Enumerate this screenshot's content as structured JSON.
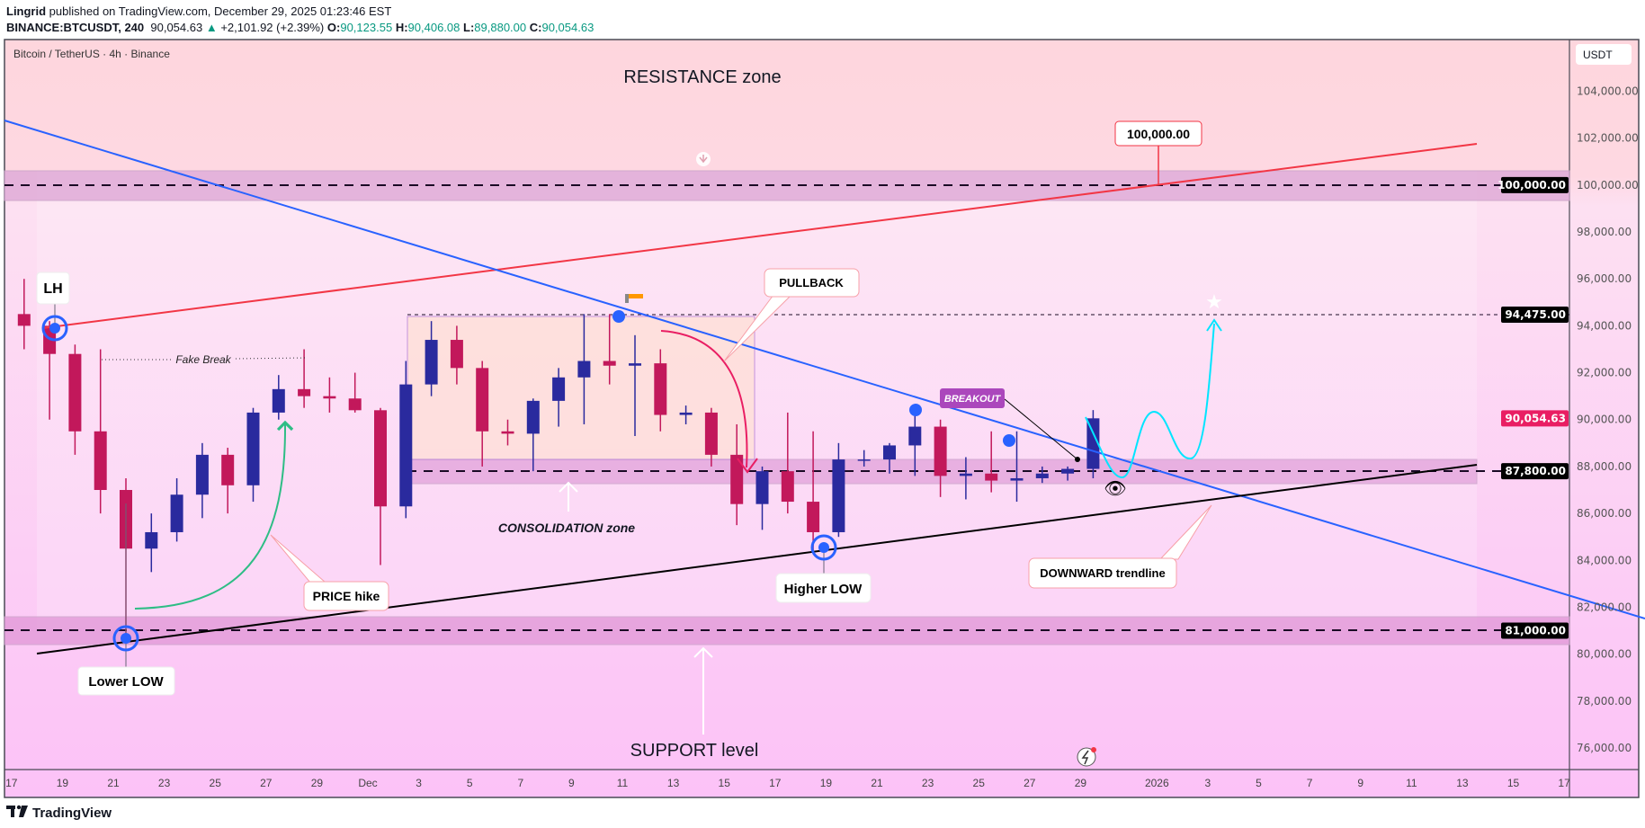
{
  "header": {
    "author": "Lingrid",
    "published": "published on TradingView.com, December 29, 2025 01:23:46 EST",
    "symbol": "BINANCE:BTCUSDT, 240",
    "last": "90,054.63",
    "change": "+2,101.92 (+2.39%)",
    "o_label": "O:",
    "o": "90,123.55",
    "h_label": "H:",
    "h": "90,406.08",
    "l_label": "L:",
    "l": "89,880.00",
    "c_label": "C:",
    "c": "90,054.63"
  },
  "chart_title": "Bitcoin / TetherUS · 4h · Binance",
  "currency": "USDT",
  "footer_logo": "TradingView",
  "colors": {
    "up": "#2a2a9e",
    "down": "#c2185b",
    "last_price": "#e91e63",
    "support_zone": "#e3a6dc",
    "trendline_down": "#2962ff",
    "trendline_red": "#f23645",
    "cyan_projection": "#00e5ff"
  },
  "annotations": {
    "resistance": "RESISTANCE zone",
    "support": "SUPPORT level",
    "consolidation": "CONSOLIDATION zone",
    "fake_break": "Fake Break",
    "lh": "LH",
    "lower_low": "Lower LOW",
    "price_hike": "PRICE hike",
    "pullback": "PULLBACK",
    "higher_low": "Higher LOW",
    "downward": "DOWNWARD trendline",
    "breakout": "BREAKOUT",
    "target": "100,000.00"
  },
  "price_tags": [
    {
      "label": "100,000.00",
      "value": 100000,
      "color": "#000000"
    },
    {
      "label": "94,475.00",
      "value": 94475,
      "color": "#000000"
    },
    {
      "label": "90,054.63",
      "value": 90054.63,
      "color": "#e91e63"
    },
    {
      "label": "87,800.00",
      "value": 87800,
      "color": "#000000"
    },
    {
      "label": "81,000.00",
      "value": 81000,
      "color": "#000000"
    }
  ],
  "chart_data": {
    "type": "candlestick",
    "title": "Bitcoin / TetherUS · 4h · Binance",
    "ylim": [
      75000,
      105500
    ],
    "y_ticks": [
      "104,000.00",
      "102,000.00",
      "100,000.00",
      "98,000.00",
      "96,000.00",
      "94,000.00",
      "92,000.00",
      "90,000.00",
      "88,000.00",
      "86,000.00",
      "84,000.00",
      "82,000.00",
      "80,000.00",
      "78,000.00",
      "76,000.00"
    ],
    "y_tick_values": [
      104000,
      102000,
      100000,
      98000,
      96000,
      94000,
      92000,
      90000,
      88000,
      86000,
      84000,
      82000,
      80000,
      78000,
      76000
    ],
    "x_ticks": [
      {
        "label": "17",
        "date": "2025-11-17"
      },
      {
        "label": "19",
        "date": "2025-11-19"
      },
      {
        "label": "21",
        "date": "2025-11-21"
      },
      {
        "label": "23",
        "date": "2025-11-23"
      },
      {
        "label": "25",
        "date": "2025-11-25"
      },
      {
        "label": "27",
        "date": "2025-11-27"
      },
      {
        "label": "29",
        "date": "2025-11-29"
      },
      {
        "label": "Dec",
        "date": "2025-12-01"
      },
      {
        "label": "3",
        "date": "2025-12-03"
      },
      {
        "label": "5",
        "date": "2025-12-05"
      },
      {
        "label": "7",
        "date": "2025-12-07"
      },
      {
        "label": "9",
        "date": "2025-12-09"
      },
      {
        "label": "11",
        "date": "2025-12-11"
      },
      {
        "label": "13",
        "date": "2025-12-13"
      },
      {
        "label": "15",
        "date": "2025-12-15"
      },
      {
        "label": "17",
        "date": "2025-12-17"
      },
      {
        "label": "19",
        "date": "2025-12-19"
      },
      {
        "label": "21",
        "date": "2025-12-21"
      },
      {
        "label": "23",
        "date": "2025-12-23"
      },
      {
        "label": "25",
        "date": "2025-12-25"
      },
      {
        "label": "27",
        "date": "2025-12-27"
      },
      {
        "label": "29",
        "date": "2025-12-29"
      },
      {
        "label": "2026",
        "date": "2026-01-01"
      },
      {
        "label": "3",
        "date": "2026-01-03"
      },
      {
        "label": "5",
        "date": "2026-01-05"
      },
      {
        "label": "7",
        "date": "2026-01-07"
      },
      {
        "label": "9",
        "date": "2026-01-09"
      },
      {
        "label": "11",
        "date": "2026-01-11"
      },
      {
        "label": "13",
        "date": "2026-01-13"
      },
      {
        "label": "15",
        "date": "2026-01-15"
      },
      {
        "label": "17",
        "date": "2026-01-17"
      }
    ],
    "ohlc": [
      [
        "2025-11-17",
        94500,
        96000,
        93000,
        94000
      ],
      [
        "2025-11-18",
        94000,
        94200,
        90000,
        92800
      ],
      [
        "2025-11-19",
        92800,
        93200,
        88500,
        89500
      ],
      [
        "2025-11-20",
        89500,
        93000,
        86000,
        87000
      ],
      [
        "2025-11-21",
        87000,
        87500,
        80600,
        84500
      ],
      [
        "2025-11-22",
        84500,
        86000,
        83500,
        85200
      ],
      [
        "2025-11-23",
        85200,
        87500,
        84800,
        86800
      ],
      [
        "2025-11-24",
        86800,
        89000,
        85800,
        88500
      ],
      [
        "2025-11-25",
        88500,
        88800,
        86000,
        87200
      ],
      [
        "2025-11-26",
        87200,
        90500,
        86500,
        90300
      ],
      [
        "2025-11-27",
        90300,
        91900,
        90000,
        91300
      ],
      [
        "2025-11-28",
        91300,
        93000,
        90500,
        91000
      ],
      [
        "2025-11-29",
        91000,
        91800,
        90300,
        90900
      ],
      [
        "2025-11-30",
        90900,
        92000,
        90300,
        90400
      ],
      [
        "2025-12-01",
        90400,
        90500,
        83800,
        86300
      ],
      [
        "2025-12-02",
        86300,
        92500,
        85800,
        91500
      ],
      [
        "2025-12-03",
        91500,
        94200,
        91000,
        93400
      ],
      [
        "2025-12-04",
        93400,
        94000,
        91500,
        92200
      ],
      [
        "2025-12-05",
        92200,
        92500,
        88000,
        89500
      ],
      [
        "2025-12-06",
        89500,
        90000,
        88900,
        89400
      ],
      [
        "2025-12-07",
        89400,
        90900,
        87800,
        90800
      ],
      [
        "2025-12-08",
        90800,
        92200,
        89700,
        91800
      ],
      [
        "2025-12-09",
        91800,
        94500,
        89800,
        92500
      ],
      [
        "2025-12-10",
        92500,
        94500,
        91500,
        92300
      ],
      [
        "2025-12-11",
        92300,
        93600,
        89300,
        92400
      ],
      [
        "2025-12-12",
        92400,
        93000,
        89500,
        90200
      ],
      [
        "2025-12-13",
        90200,
        90600,
        89800,
        90300
      ],
      [
        "2025-12-14",
        90300,
        90500,
        88000,
        88500
      ],
      [
        "2025-12-15",
        88500,
        89800,
        85500,
        86400
      ],
      [
        "2025-12-16",
        86400,
        88000,
        85300,
        87800
      ],
      [
        "2025-12-17",
        87800,
        90300,
        86000,
        86500
      ],
      [
        "2025-12-18",
        86500,
        89500,
        84300,
        85200
      ],
      [
        "2025-12-19",
        85200,
        89000,
        85000,
        88300
      ],
      [
        "2025-12-20",
        88300,
        88700,
        88000,
        88300
      ],
      [
        "2025-12-21",
        88300,
        89000,
        87700,
        88900
      ],
      [
        "2025-12-22",
        88900,
        90500,
        87600,
        89700
      ],
      [
        "2025-12-23",
        89700,
        90000,
        86700,
        87600
      ],
      [
        "2025-12-24",
        87600,
        88400,
        86600,
        87700
      ],
      [
        "2025-12-25",
        87700,
        89500,
        86900,
        87400
      ],
      [
        "2025-12-26",
        87400,
        89500,
        86500,
        87500
      ],
      [
        "2025-12-27",
        87500,
        88000,
        87300,
        87700
      ],
      [
        "2025-12-28",
        87700,
        88000,
        87400,
        87900
      ],
      [
        "2025-12-29",
        87900,
        90406.08,
        87500,
        90054.63
      ]
    ]
  }
}
